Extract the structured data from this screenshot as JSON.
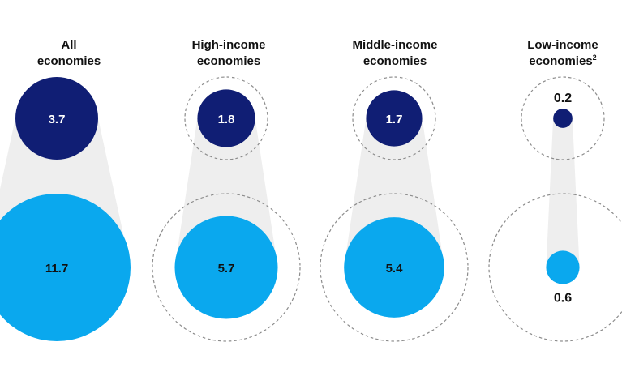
{
  "chart_data": {
    "type": "bubble",
    "groups": [
      {
        "title": "All economies",
        "title_lines": [
          "All",
          "economies"
        ],
        "title_superscript": "",
        "top_value": 3.7,
        "bottom_value": 11.7,
        "dashed_reference": false
      },
      {
        "title": "High-income economies",
        "title_lines": [
          "High-income",
          "economies"
        ],
        "title_superscript": "",
        "top_value": 1.8,
        "bottom_value": 5.7,
        "dashed_reference": true
      },
      {
        "title": "Middle-income economies",
        "title_lines": [
          "Middle-income",
          "economies"
        ],
        "title_superscript": "",
        "top_value": 1.7,
        "bottom_value": 5.4,
        "dashed_reference": true
      },
      {
        "title": "Low-income economies",
        "title_lines": [
          "Low-income",
          "economies"
        ],
        "title_superscript": "2",
        "top_value": 0.2,
        "bottom_value": 0.6,
        "dashed_reference": true
      }
    ],
    "small_value_labels_outside": true
  },
  "colors": {
    "top_circle": "#101e74",
    "bottom_circle": "#0aa8ee",
    "connector": "#eeeeee",
    "dashed_outline": "#8c8c8c",
    "label_on_dark": "#ffffff",
    "label_on_light": "#111111",
    "title": "#111111"
  }
}
